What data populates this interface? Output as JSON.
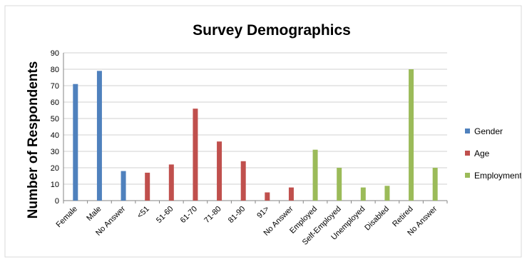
{
  "chart_data": {
    "type": "bar",
    "title": "Survey Demographics",
    "xlabel": "",
    "ylabel": "Number of Respondents",
    "ylim": [
      0,
      90
    ],
    "yticks": [
      0,
      10,
      20,
      30,
      40,
      50,
      60,
      70,
      80,
      90
    ],
    "grid": true,
    "legend_position": "right",
    "categories": [
      "Female",
      "Male",
      "No Answer",
      "<51",
      "51-60",
      "61-70",
      "71-80",
      "81-90",
      "91>",
      "No Answer",
      "Employed",
      "Self-Employed",
      "Unemployed",
      "Disabled",
      "Retired",
      "No Answer"
    ],
    "series": [
      {
        "name": "Gender",
        "color": "#4F81BD",
        "values": [
          71,
          79,
          18,
          null,
          null,
          null,
          null,
          null,
          null,
          null,
          null,
          null,
          null,
          null,
          null,
          null
        ]
      },
      {
        "name": "Age",
        "color": "#C0504D",
        "values": [
          null,
          null,
          null,
          17,
          22,
          56,
          36,
          24,
          5,
          8,
          null,
          null,
          null,
          null,
          null,
          null
        ]
      },
      {
        "name": "Employment",
        "color": "#9BBB59",
        "values": [
          null,
          null,
          null,
          null,
          null,
          null,
          null,
          null,
          null,
          null,
          31,
          20,
          8,
          9,
          80,
          20
        ]
      }
    ]
  }
}
